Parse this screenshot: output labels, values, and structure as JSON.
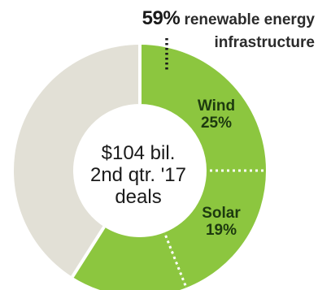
{
  "chart_data": {
    "type": "pie",
    "style": "donut",
    "center_label": [
      "$104 bil.",
      "2nd qtr. '17",
      "deals"
    ],
    "callout": {
      "percent": "59%",
      "text_line1": "renewable energy",
      "text_line2": "infrastructure"
    },
    "segments": [
      {
        "label": "Wind",
        "value_label": "25%",
        "value": 25,
        "color": "#8cc63f"
      },
      {
        "label": "Solar",
        "value_label": "19%",
        "value": 19,
        "color": "#8cc63f"
      },
      {
        "label": "",
        "value_label": "",
        "value": 15,
        "color": "#8cc63f"
      },
      {
        "label": "",
        "value_label": "",
        "value": 41,
        "color": "#e2e0d6"
      }
    ],
    "renewable_group_total": 59
  }
}
